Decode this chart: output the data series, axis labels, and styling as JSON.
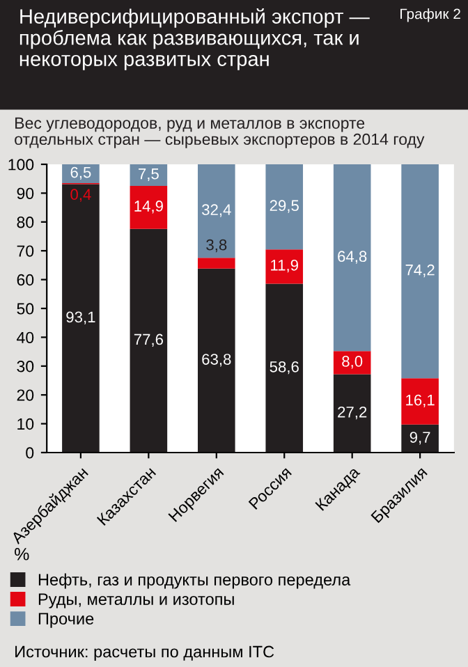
{
  "chart_data": {
    "type": "bar",
    "stacked": true,
    "title": "Недиверсифицированный экспорт —\nпроблема как развивающихся, так и\nнекоторых развитых стран",
    "annotations": [
      "График 2",
      "Источник: расчеты по данным ITC"
    ],
    "subtitle": "Вес углеводородов, руд и металлов в экспорте\nотдельных стран — сырьевых экспортеров в 2014 году",
    "ylabel": "%",
    "categories": [
      "Азербайджан",
      "Казахстан",
      "Норвегия",
      "Россия",
      "Канада",
      "Бразилия"
    ],
    "series": [
      {
        "name": "Нефть, газ и продукты первого передела",
        "color": "#231f20",
        "values": [
          93.1,
          77.6,
          63.8,
          58.6,
          27.2,
          9.7
        ],
        "value_labels": [
          "93,1",
          "77,6",
          "63,8",
          "58,6",
          "27,2",
          "9,7"
        ]
      },
      {
        "name": "Руды, металлы и изотопы",
        "color": "#e30613",
        "values": [
          0.4,
          14.9,
          3.8,
          11.9,
          8.0,
          16.1
        ],
        "value_labels": [
          "0,4",
          "14,9",
          "3,8",
          "11,9",
          "8,0",
          "16,1"
        ]
      },
      {
        "name": "Прочие",
        "color": "#6e8ba6",
        "values": [
          6.5,
          7.5,
          32.4,
          29.5,
          64.8,
          74.2
        ],
        "value_labels": [
          "6,5",
          "7,5",
          "32,4",
          "29,5",
          "64,8",
          "74,2"
        ]
      }
    ],
    "ylim": [
      0,
      100
    ],
    "yticks": [
      0,
      10,
      20,
      30,
      40,
      50,
      60,
      70,
      80,
      90,
      100
    ],
    "grid": false,
    "legend": "bottom"
  }
}
